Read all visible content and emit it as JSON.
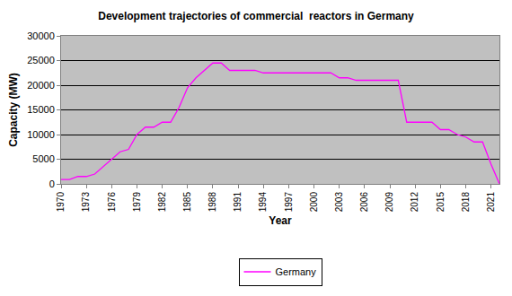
{
  "chart_data": {
    "type": "line",
    "title": "Development trajectories of commercial  reactors in Germany",
    "x_label": "Year",
    "y_label": "Capacity (MW)",
    "x": [
      1970,
      1971,
      1972,
      1973,
      1974,
      1975,
      1976,
      1977,
      1978,
      1979,
      1980,
      1981,
      1982,
      1983,
      1984,
      1985,
      1986,
      1987,
      1988,
      1989,
      1990,
      1991,
      1992,
      1993,
      1994,
      1995,
      1996,
      1997,
      1998,
      1999,
      2000,
      2001,
      2002,
      2003,
      2004,
      2005,
      2006,
      2007,
      2008,
      2009,
      2010,
      2011,
      2012,
      2013,
      2014,
      2015,
      2016,
      2017,
      2018,
      2019,
      2020,
      2021,
      2022
    ],
    "series": [
      {
        "name": "Germany",
        "color": "#ff00ff",
        "values": [
          900,
          900,
          1500,
          1500,
          2000,
          3500,
          5000,
          6500,
          7000,
          10000,
          11500,
          11500,
          12500,
          12500,
          15500,
          19500,
          21500,
          23000,
          24500,
          24500,
          23000,
          23000,
          23000,
          23000,
          22500,
          22500,
          22500,
          22500,
          22500,
          22500,
          22500,
          22500,
          22500,
          21500,
          21500,
          21000,
          21000,
          21000,
          21000,
          21000,
          21000,
          12500,
          12500,
          12500,
          12500,
          11000,
          11000,
          10000,
          9500,
          8500,
          8500,
          4000,
          0
        ]
      }
    ],
    "xlim": [
      1970,
      2022
    ],
    "xticks": [
      1970,
      1973,
      1976,
      1979,
      1982,
      1985,
      1988,
      1991,
      1994,
      1997,
      2000,
      2003,
      2006,
      2009,
      2012,
      2015,
      2018,
      2021
    ],
    "ylim": [
      0,
      30000
    ],
    "yticks": [
      0,
      5000,
      10000,
      15000,
      20000,
      25000,
      30000
    ],
    "grid": true,
    "legend": "bottom"
  }
}
